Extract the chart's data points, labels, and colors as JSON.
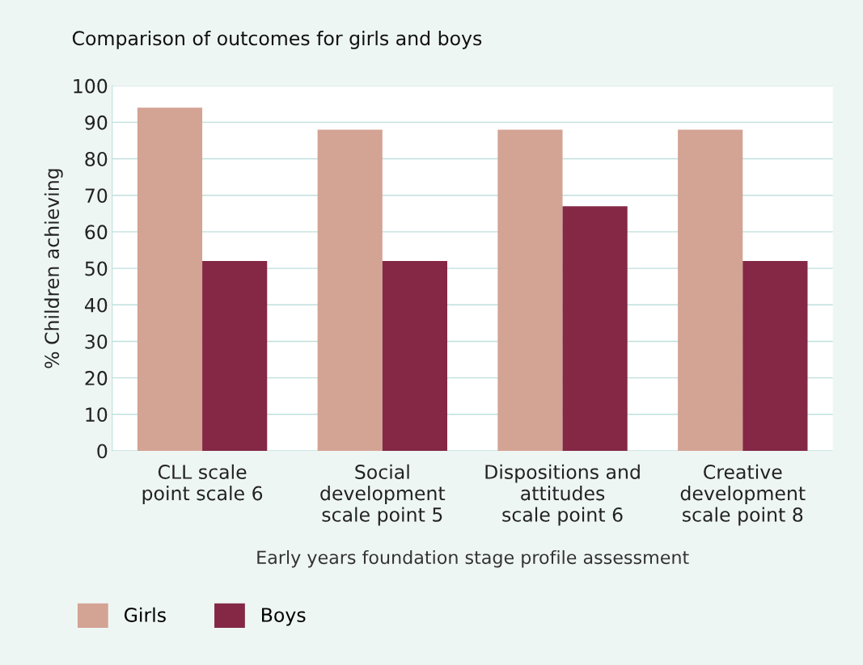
{
  "chart_data": {
    "type": "bar",
    "title": "Comparison of outcomes for girls and boys",
    "xlabel": "Early years foundation stage profile assessment",
    "ylabel": "% Children achieving",
    "categories": [
      "CLL scale\npoint scale 6",
      "Social\ndevelopment\nscale point 5",
      "Dispositions and\nattitudes\nscale point 6",
      "Creative\ndevelopment\nscale point 8"
    ],
    "series": [
      {
        "name": "Girls",
        "color": "#d3a394",
        "values": [
          94,
          88,
          88,
          88
        ]
      },
      {
        "name": "Boys",
        "color": "#842845",
        "values": [
          52,
          52,
          67,
          52
        ]
      }
    ],
    "ylim": [
      0,
      100
    ],
    "yticks": [
      0,
      10,
      20,
      30,
      40,
      50,
      60,
      70,
      80,
      90,
      100
    ],
    "grid": "y",
    "legend": "bottom left"
  }
}
